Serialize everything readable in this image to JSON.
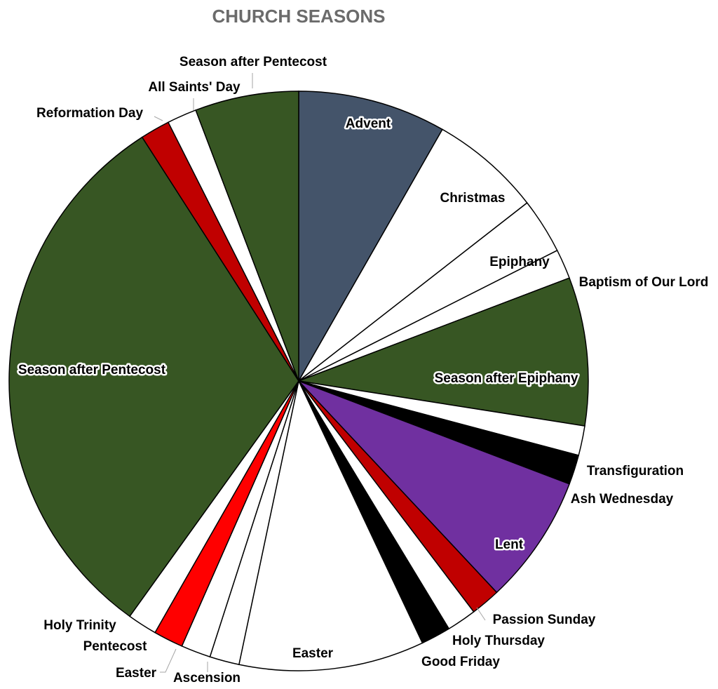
{
  "chart_data": {
    "type": "pie",
    "title": "CHURCH SEASONS",
    "start_angle_deg": 0,
    "direction": "clockwise",
    "slices": [
      {
        "name": "Advent",
        "value": 4,
        "color": "#44546a"
      },
      {
        "name": "Christmas",
        "value": 3,
        "color": "#ffffff"
      },
      {
        "name": "Epiphany",
        "value": 1.5,
        "color": "#ffffff"
      },
      {
        "name": "Baptism of Our Lord",
        "value": 0.8,
        "color": "#ffffff"
      },
      {
        "name": "Season after Epiphany",
        "value": 4,
        "color": "#375623"
      },
      {
        "name": "Transfiguration",
        "value": 0.8,
        "color": "#ffffff"
      },
      {
        "name": "Ash Wednesday",
        "value": 0.8,
        "color": "#000000"
      },
      {
        "name": "Lent",
        "value": 3.5,
        "color": "#7030a0"
      },
      {
        "name": "Passion Sunday",
        "value": 0.8,
        "color": "#c00000"
      },
      {
        "name": "Holy Thursday",
        "value": 0.8,
        "color": "#ffffff"
      },
      {
        "name": "Good Friday",
        "value": 0.8,
        "color": "#000000"
      },
      {
        "name": "Easter",
        "value": 5,
        "color": "#ffffff"
      },
      {
        "name": "Ascension",
        "value": 0.8,
        "color": "#ffffff"
      },
      {
        "name": "Easter",
        "value": 0.8,
        "color": "#ffffff"
      },
      {
        "name": "Pentecost",
        "value": 0.8,
        "color": "#ff0000"
      },
      {
        "name": "Holy Trinity",
        "value": 0.8,
        "color": "#ffffff"
      },
      {
        "name": "Season after Pentecost",
        "value": 15,
        "color": "#375623"
      },
      {
        "name": "Reformation Day",
        "value": 0.8,
        "color": "#c00000"
      },
      {
        "name": "All Saints' Day",
        "value": 0.8,
        "color": "#ffffff"
      },
      {
        "name": "Season after Pentecost",
        "value": 2.8,
        "color": "#375623"
      }
    ]
  }
}
